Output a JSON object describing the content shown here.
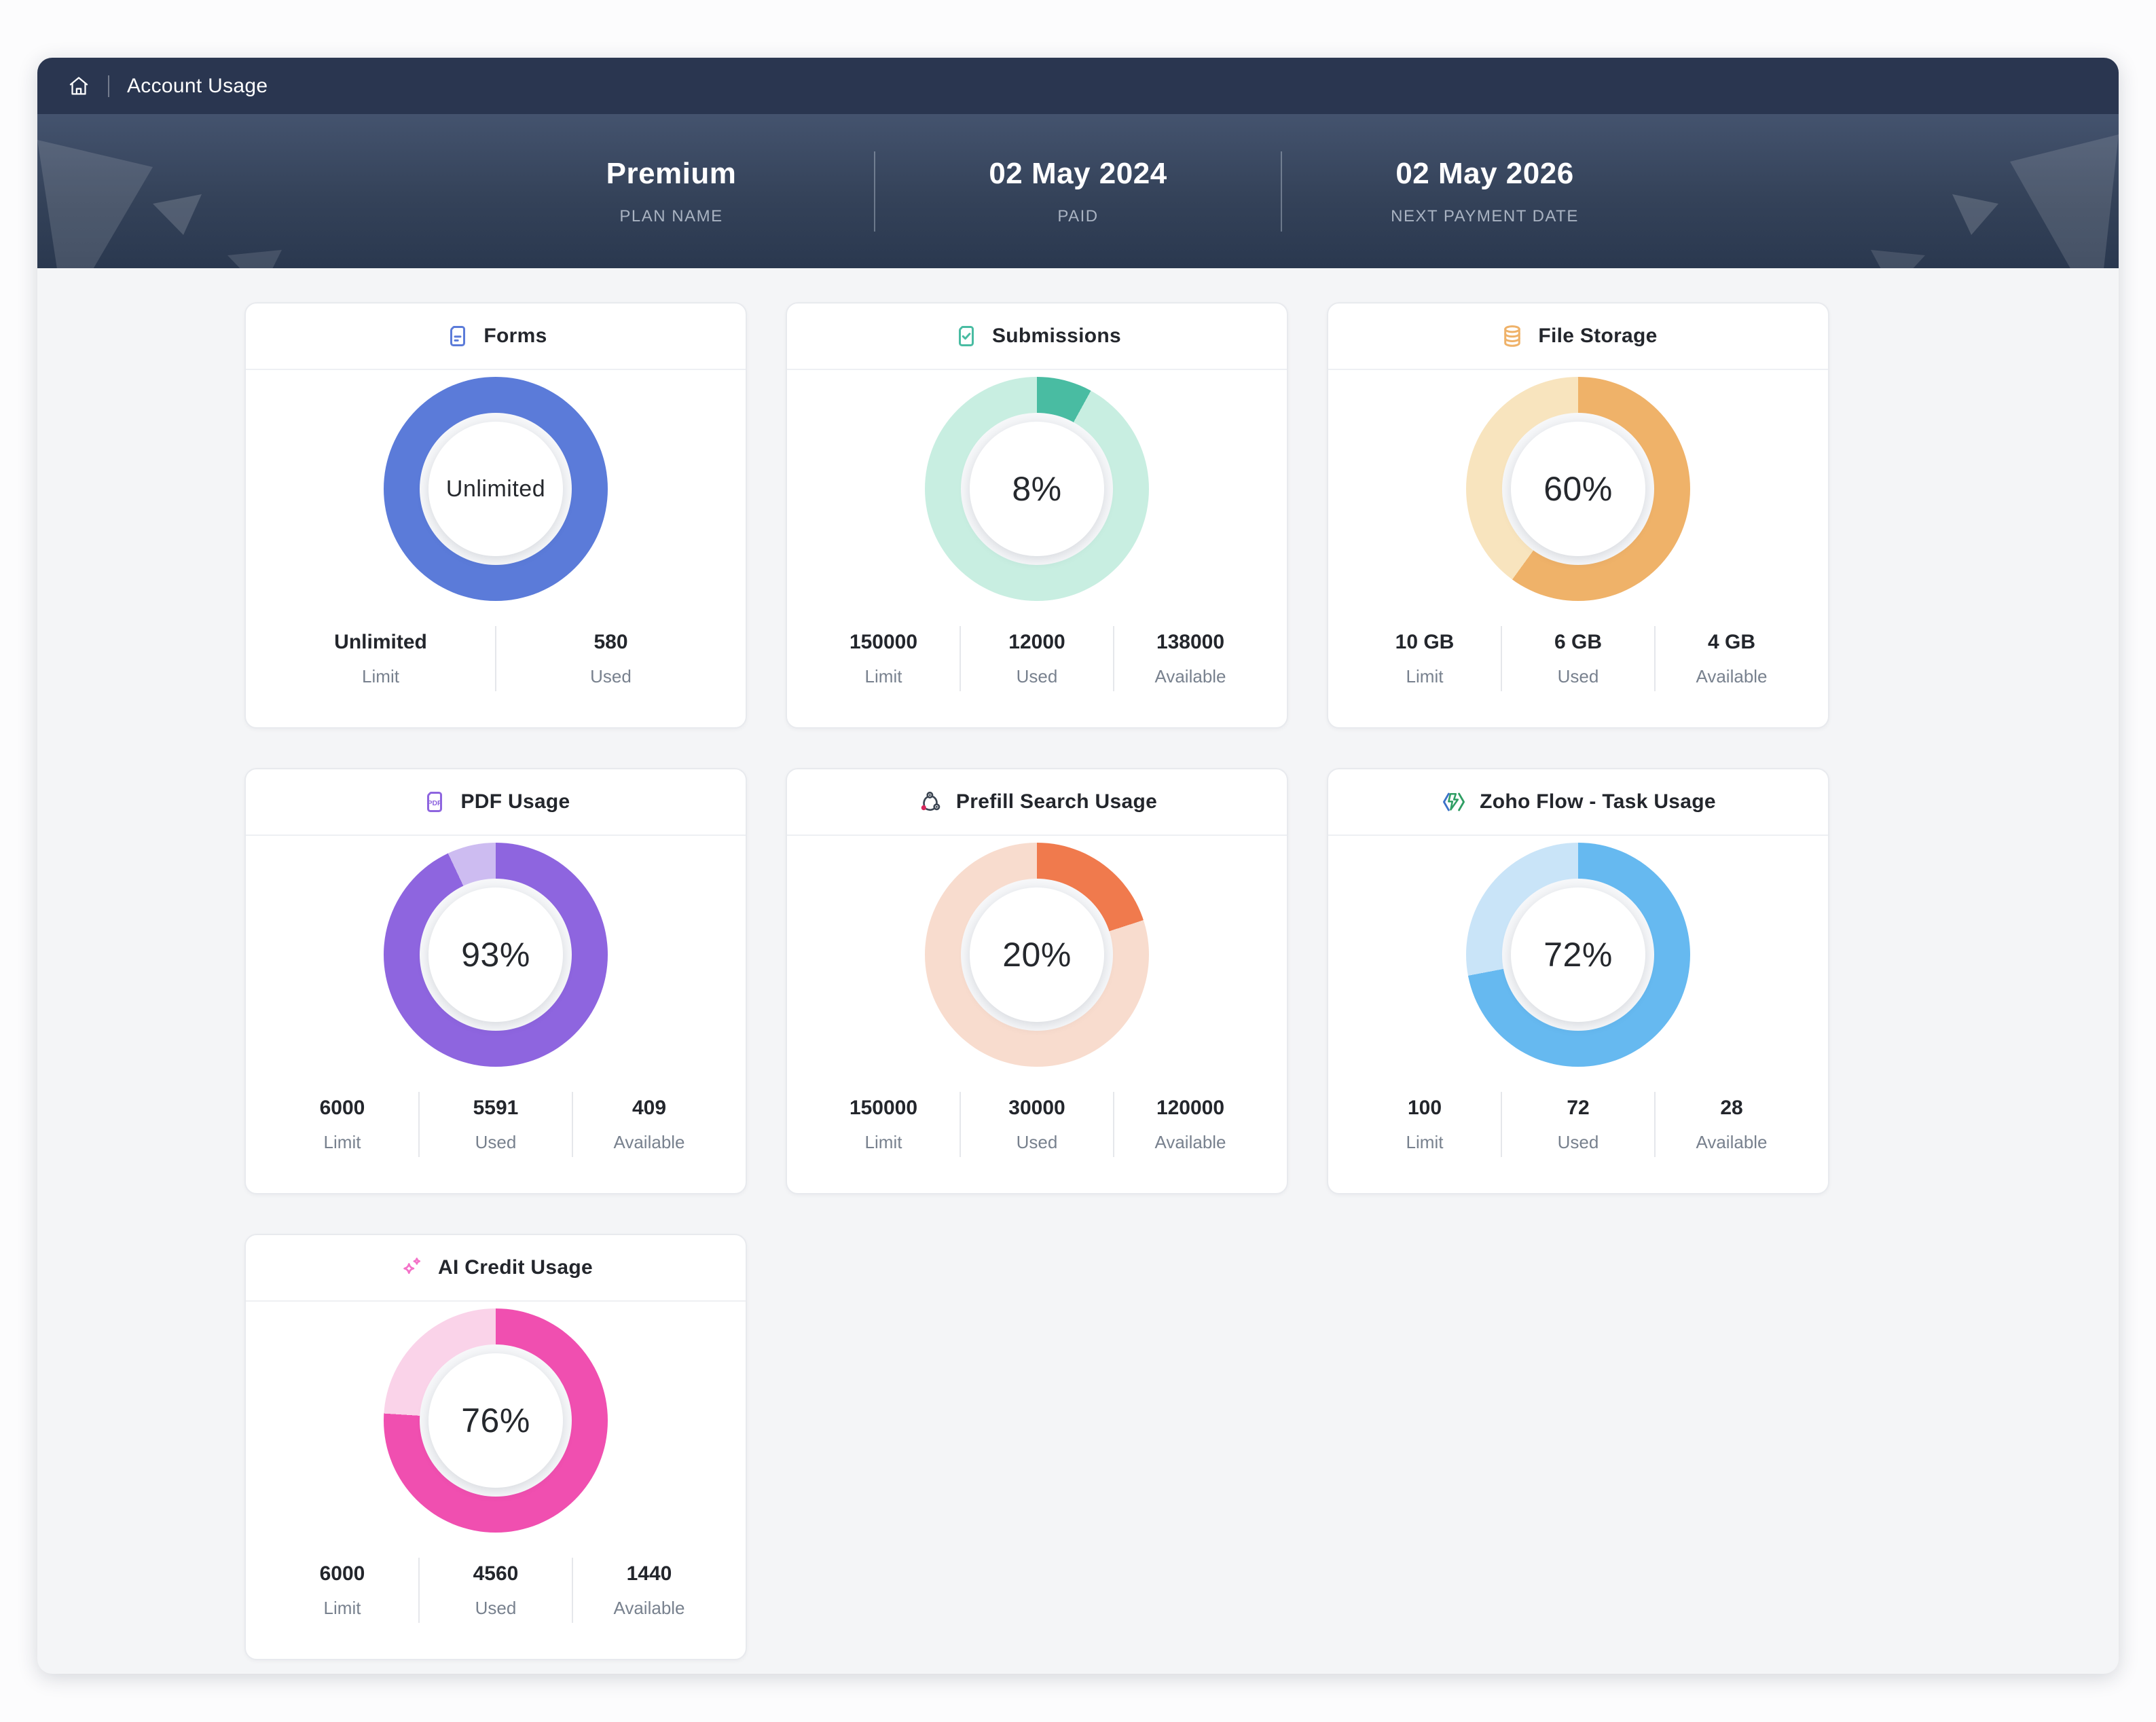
{
  "header": {
    "title": "Account Usage"
  },
  "banner": {
    "items": [
      {
        "value": "Premium",
        "label": "PLAN NAME"
      },
      {
        "value": "02 May 2024",
        "label": "PAID"
      },
      {
        "value": "02 May 2026",
        "label": "NEXT PAYMENT DATE"
      }
    ]
  },
  "cards": [
    {
      "title": "Forms",
      "icon": "form-document-icon",
      "center_text": "Unlimited",
      "percent_used": 100,
      "color_used": "#5B7BD9",
      "color_track": "#5B7BD9",
      "stats": [
        {
          "value": "Unlimited",
          "label": "Limit"
        },
        {
          "value": "580",
          "label": "Used"
        }
      ]
    },
    {
      "title": "Submissions",
      "icon": "submission-check-icon",
      "center_text": "8%",
      "percent_used": 8,
      "color_used": "#49BCA2",
      "color_track": "#C8EEE1",
      "stats": [
        {
          "value": "150000",
          "label": "Limit"
        },
        {
          "value": "12000",
          "label": "Used"
        },
        {
          "value": "138000",
          "label": "Available"
        }
      ]
    },
    {
      "title": "File Storage",
      "icon": "file-storage-icon",
      "center_text": "60%",
      "percent_used": 60,
      "color_used": "#EFB269",
      "color_track": "#F8E4BE",
      "stats": [
        {
          "value": "10 GB",
          "label": "Limit"
        },
        {
          "value": "6 GB",
          "label": "Used"
        },
        {
          "value": "4 GB",
          "label": "Available"
        }
      ]
    },
    {
      "title": "PDF Usage",
      "icon": "pdf-document-icon",
      "center_text": "93%",
      "percent_used": 93,
      "color_used": "#8E65DF",
      "color_track": "#CDBCF1",
      "stats": [
        {
          "value": "6000",
          "label": "Limit"
        },
        {
          "value": "5591",
          "label": "Used"
        },
        {
          "value": "409",
          "label": "Available"
        }
      ]
    },
    {
      "title": "Prefill Search Usage",
      "icon": "prefill-nodes-icon",
      "center_text": "20%",
      "percent_used": 20,
      "color_used": "#F07A4D",
      "color_track": "#F8DCCE",
      "stats": [
        {
          "value": "150000",
          "label": "Limit"
        },
        {
          "value": "30000",
          "label": "Used"
        },
        {
          "value": "120000",
          "label": "Available"
        }
      ]
    },
    {
      "title": "Zoho Flow - Task Usage",
      "icon": "zoho-flow-icon",
      "center_text": "72%",
      "percent_used": 72,
      "color_used": "#66B9F0",
      "color_track": "#C9E4F8",
      "stats": [
        {
          "value": "100",
          "label": "Limit"
        },
        {
          "value": "72",
          "label": "Used"
        },
        {
          "value": "28",
          "label": "Available"
        }
      ]
    },
    {
      "title": "AI Credit Usage",
      "icon": "ai-sparkles-icon",
      "center_text": "76%",
      "percent_used": 76,
      "color_used": "#F04FB0",
      "color_track": "#FAD3E9",
      "stats": [
        {
          "value": "6000",
          "label": "Limit"
        },
        {
          "value": "4560",
          "label": "Used"
        },
        {
          "value": "1440",
          "label": "Available"
        }
      ]
    }
  ],
  "chart_data": [
    {
      "type": "pie",
      "title": "Forms",
      "center_label": "Unlimited",
      "slices": [
        {
          "label": "Used",
          "value": 580
        }
      ],
      "limit": "Unlimited"
    },
    {
      "type": "pie",
      "title": "Submissions",
      "center_label": "8%",
      "slices": [
        {
          "label": "Used",
          "value": 12000
        },
        {
          "label": "Available",
          "value": 138000
        }
      ],
      "limit": 150000
    },
    {
      "type": "pie",
      "title": "File Storage",
      "center_label": "60%",
      "slices": [
        {
          "label": "Used",
          "value": "6 GB"
        },
        {
          "label": "Available",
          "value": "4 GB"
        }
      ],
      "limit": "10 GB"
    },
    {
      "type": "pie",
      "title": "PDF Usage",
      "center_label": "93%",
      "slices": [
        {
          "label": "Used",
          "value": 5591
        },
        {
          "label": "Available",
          "value": 409
        }
      ],
      "limit": 6000
    },
    {
      "type": "pie",
      "title": "Prefill Search Usage",
      "center_label": "20%",
      "slices": [
        {
          "label": "Used",
          "value": 30000
        },
        {
          "label": "Available",
          "value": 120000
        }
      ],
      "limit": 150000
    },
    {
      "type": "pie",
      "title": "Zoho Flow - Task Usage",
      "center_label": "72%",
      "slices": [
        {
          "label": "Used",
          "value": 72
        },
        {
          "label": "Available",
          "value": 28
        }
      ],
      "limit": 100
    },
    {
      "type": "pie",
      "title": "AI Credit Usage",
      "center_label": "76%",
      "slices": [
        {
          "label": "Used",
          "value": 4560
        },
        {
          "label": "Available",
          "value": 1440
        }
      ],
      "limit": 6000
    }
  ]
}
